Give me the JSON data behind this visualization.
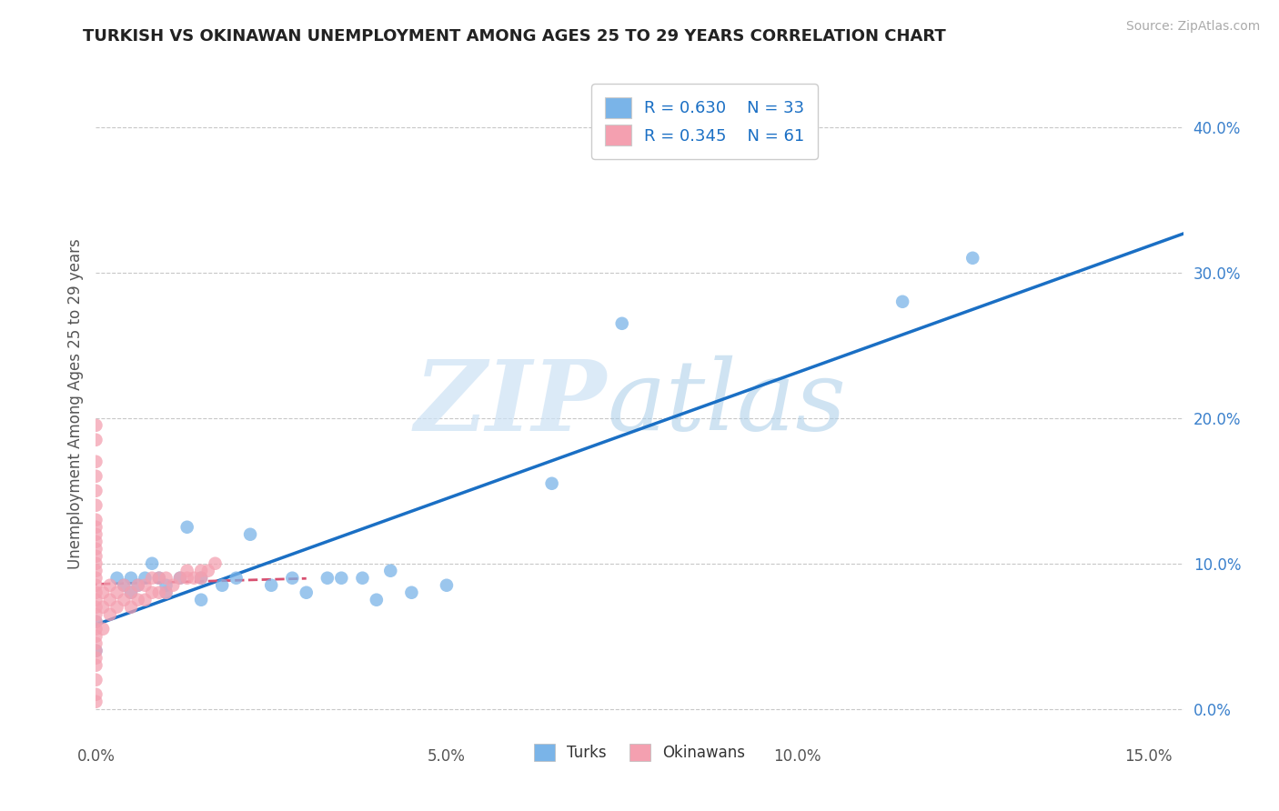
{
  "title": "TURKISH VS OKINAWAN UNEMPLOYMENT AMONG AGES 25 TO 29 YEARS CORRELATION CHART",
  "source": "Source: ZipAtlas.com",
  "ylabel": "Unemployment Among Ages 25 to 29 years",
  "xlim": [
    0.0,
    0.155
  ],
  "ylim": [
    -0.02,
    0.44
  ],
  "xticks": [
    0.0,
    0.05,
    0.1,
    0.15
  ],
  "xtick_labels": [
    "0.0%",
    "5.0%",
    "10.0%",
    "15.0%"
  ],
  "yticks_right": [
    0.0,
    0.1,
    0.2,
    0.3,
    0.4
  ],
  "ytick_labels_right": [
    "0.0%",
    "10.0%",
    "20.0%",
    "30.0%",
    "40.0%"
  ],
  "turks_R": 0.63,
  "turks_N": 33,
  "okinawans_R": 0.345,
  "okinawans_N": 61,
  "turks_color": "#7ab4e8",
  "turks_line_color": "#1a6fc4",
  "okinawans_color": "#f4a0b0",
  "okinawans_line_color": "#d85070",
  "turks_x": [
    0.0,
    0.0,
    0.003,
    0.004,
    0.005,
    0.005,
    0.006,
    0.007,
    0.008,
    0.009,
    0.01,
    0.01,
    0.012,
    0.013,
    0.015,
    0.015,
    0.018,
    0.02,
    0.022,
    0.025,
    0.028,
    0.03,
    0.033,
    0.035,
    0.038,
    0.04,
    0.042,
    0.045,
    0.05,
    0.065,
    0.075,
    0.115,
    0.125
  ],
  "turks_y": [
    0.06,
    0.04,
    0.09,
    0.085,
    0.09,
    0.08,
    0.085,
    0.09,
    0.1,
    0.09,
    0.08,
    0.085,
    0.09,
    0.125,
    0.075,
    0.09,
    0.085,
    0.09,
    0.12,
    0.085,
    0.09,
    0.08,
    0.09,
    0.09,
    0.09,
    0.075,
    0.095,
    0.08,
    0.085,
    0.155,
    0.265,
    0.28,
    0.31
  ],
  "okinawans_x": [
    0.0,
    0.0,
    0.0,
    0.0,
    0.0,
    0.0,
    0.0,
    0.0,
    0.0,
    0.0,
    0.0,
    0.0,
    0.0,
    0.0,
    0.0,
    0.0,
    0.0,
    0.0,
    0.0,
    0.0,
    0.0,
    0.0,
    0.0,
    0.0,
    0.0,
    0.0,
    0.0,
    0.0,
    0.0,
    0.0,
    0.001,
    0.001,
    0.001,
    0.002,
    0.002,
    0.002,
    0.003,
    0.003,
    0.004,
    0.004,
    0.005,
    0.005,
    0.006,
    0.006,
    0.007,
    0.007,
    0.008,
    0.008,
    0.009,
    0.009,
    0.01,
    0.01,
    0.011,
    0.012,
    0.013,
    0.013,
    0.014,
    0.015,
    0.015,
    0.016,
    0.017
  ],
  "okinawans_y": [
    0.005,
    0.01,
    0.02,
    0.03,
    0.035,
    0.04,
    0.045,
    0.05,
    0.055,
    0.06,
    0.065,
    0.07,
    0.075,
    0.08,
    0.085,
    0.09,
    0.095,
    0.1,
    0.105,
    0.11,
    0.115,
    0.12,
    0.125,
    0.13,
    0.14,
    0.15,
    0.16,
    0.17,
    0.185,
    0.195,
    0.055,
    0.07,
    0.08,
    0.065,
    0.075,
    0.085,
    0.07,
    0.08,
    0.075,
    0.085,
    0.07,
    0.08,
    0.075,
    0.085,
    0.075,
    0.085,
    0.08,
    0.09,
    0.08,
    0.09,
    0.08,
    0.09,
    0.085,
    0.09,
    0.09,
    0.095,
    0.09,
    0.09,
    0.095,
    0.095,
    0.1
  ]
}
